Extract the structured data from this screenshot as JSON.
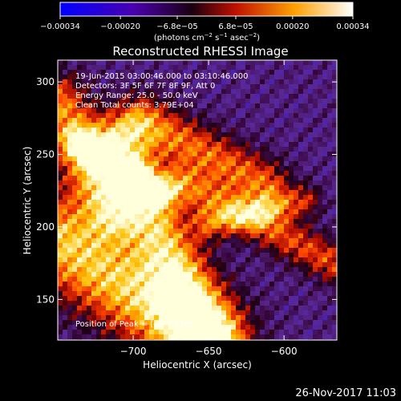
{
  "colorbar": {
    "tick_labels": [
      "−0.00034",
      "−0.00020",
      "−6.8e−05",
      "6.8e−05",
      "0.00020",
      "0.00034"
    ],
    "tick_values": [
      -0.00034,
      -0.0002,
      -6.8e-05,
      6.8e-05,
      0.0002,
      0.00034
    ],
    "range": [
      -0.00034,
      0.00034
    ],
    "units_prefix": "(photons cm",
    "units_exp1": "−2",
    "units_mid": " s",
    "units_exp2": "−1",
    "units_mid2": " asec",
    "units_exp3": "−2",
    "units_suffix": ")",
    "colors": [
      "#0000ff",
      "#5a00a0",
      "#2a0000",
      "#ff4a00",
      "#ffe000",
      "#ffffff"
    ]
  },
  "chart_data": {
    "type": "heatmap",
    "title": "Reconstructed RHESSI Image",
    "xlabel": "Heliocentric X (arcsec)",
    "ylabel": "Heliocentric Y (arcsec)",
    "xlim": [
      -750,
      -565
    ],
    "ylim": [
      122,
      315
    ],
    "xticks": [
      -700,
      -650,
      -600
    ],
    "xtick_labels": [
      "−700",
      "−650",
      "−600"
    ],
    "yticks": [
      150,
      200,
      250,
      300
    ],
    "ytick_labels": [
      "150",
      "200",
      "250",
      "300"
    ],
    "annotations": [
      "19-Jun-2015 03:00:46.000 to 03:10:46.000",
      "Detectors: 3F 5F 6F 7F 8F 9F, Att 0",
      "Energy Range: 25.0 - 50.0 keV",
      "Clean    Total counts: 3.79E+04"
    ],
    "peak_label": "Position of Peak = [-677,130]",
    "peak_position": [
      -677,
      130
    ]
  },
  "footer": {
    "timestamp": "26-Nov-2017 11:03"
  }
}
